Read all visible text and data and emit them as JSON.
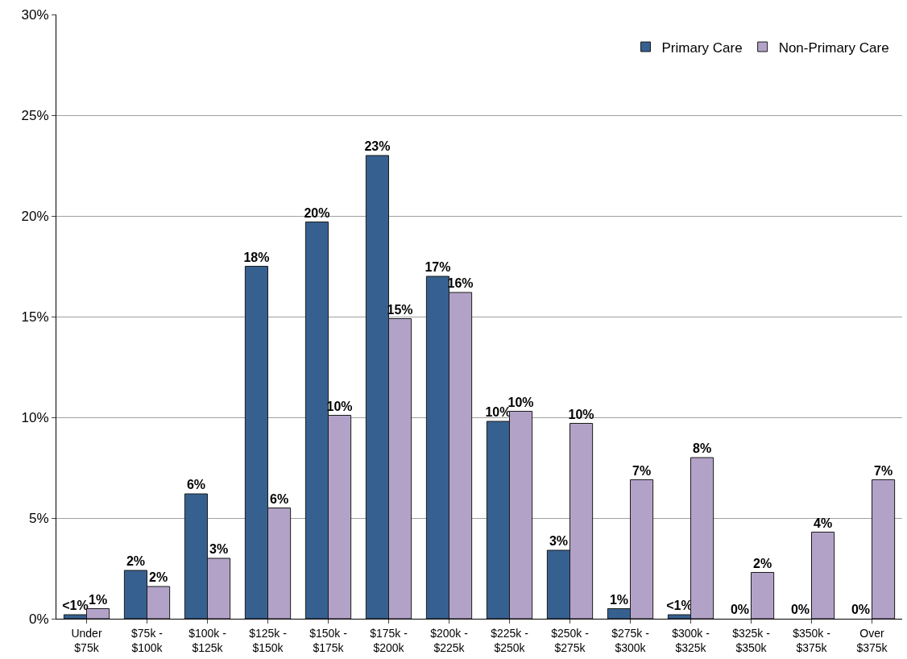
{
  "chart_data": {
    "type": "bar",
    "categories": [
      "Under $75k",
      "$75k - $100k",
      "$100k - $125k",
      "$125k - $150k",
      "$150k - $175k",
      "$175k - $200k",
      "$200k - $225k",
      "$225k - $250k",
      "$250k - $275k",
      "$275k - $300k",
      "$300k - $325k",
      "$325k - $350k",
      "$350k - $375k",
      "Over $375k"
    ],
    "series": [
      {
        "name": "Primary Care",
        "color": "#36608f",
        "values": [
          0.2,
          2.4,
          6.2,
          17.5,
          19.7,
          23.0,
          17.0,
          9.8,
          3.4,
          0.5,
          0.2,
          0,
          0,
          0
        ],
        "value_labels": [
          "<1%",
          "2%",
          "6%",
          "18%",
          "20%",
          "23%",
          "17%",
          "10%",
          "3%",
          "1%",
          "<1%",
          "0%",
          "0%",
          "0%"
        ]
      },
      {
        "name": "Non-Primary Care",
        "color": "#b3a2c8",
        "values": [
          0.5,
          1.6,
          3.0,
          5.5,
          10.1,
          14.9,
          16.2,
          10.3,
          9.7,
          6.9,
          8.0,
          2.3,
          4.3,
          6.9
        ],
        "value_labels": [
          "1%",
          "2%",
          "3%",
          "6%",
          "10%",
          "15%",
          "16%",
          "10%",
          "10%",
          "7%",
          "8%",
          "2%",
          "4%",
          "7%"
        ]
      }
    ],
    "ylim": [
      0,
      30
    ],
    "yticks": [
      {
        "value": 0,
        "label": "0%"
      },
      {
        "value": 5,
        "label": "5%"
      },
      {
        "value": 10,
        "label": "10%"
      },
      {
        "value": 15,
        "label": "15%"
      },
      {
        "value": 20,
        "label": "20%"
      },
      {
        "value": 25,
        "label": "25%"
      },
      {
        "value": 30,
        "label": "30%"
      }
    ],
    "grid": "y",
    "legend": "top right"
  }
}
